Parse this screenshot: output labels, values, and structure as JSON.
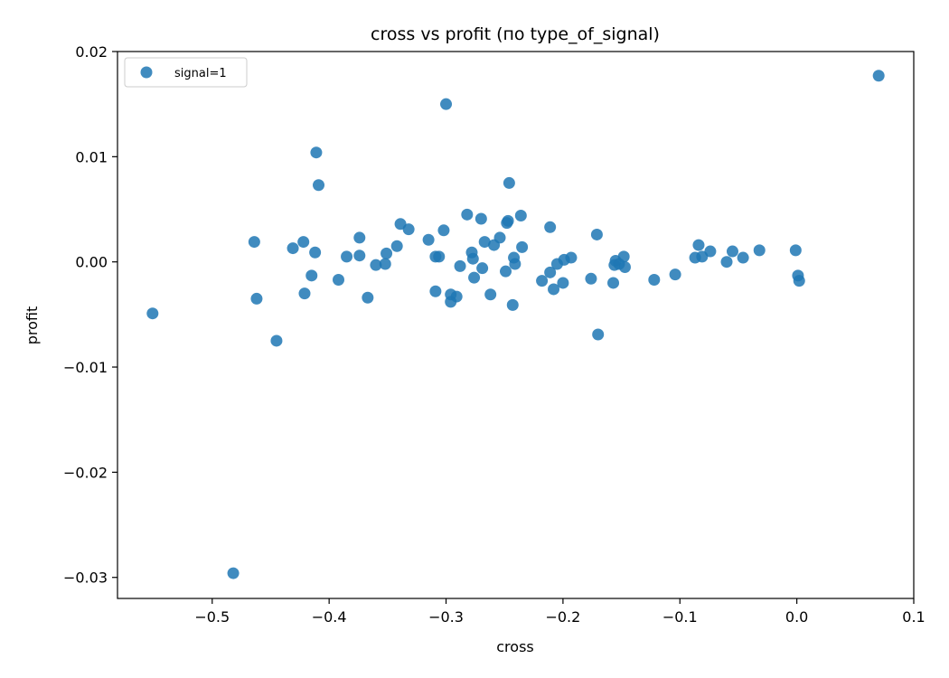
{
  "chart_data": {
    "type": "scatter",
    "title": "cross vs profit (по type_of_signal)",
    "xlabel": "cross",
    "ylabel": "profit",
    "xlim": [
      -0.581,
      0.1
    ],
    "ylim": [
      -0.032,
      0.02
    ],
    "x_ticks": [
      -0.5,
      -0.4,
      -0.3,
      -0.2,
      -0.1,
      0.0,
      0.1
    ],
    "x_tick_labels": [
      "−0.5",
      "−0.4",
      "−0.3",
      "−0.2",
      "−0.1",
      "0.0",
      "0.1"
    ],
    "y_ticks": [
      0.02,
      0.01,
      0.0,
      -0.01,
      -0.02,
      -0.03
    ],
    "y_tick_labels": [
      "0.02",
      "0.01",
      "0.00",
      "−0.01",
      "−0.02",
      "−0.03"
    ],
    "grid": false,
    "legend_position": "top-left",
    "colors": {
      "series": "#1f77b4"
    },
    "series": [
      {
        "name": "signal=1",
        "points": [
          [
            -0.551,
            -0.0049
          ],
          [
            -0.482,
            -0.0296
          ],
          [
            -0.464,
            0.0019
          ],
          [
            -0.462,
            -0.0035
          ],
          [
            -0.445,
            -0.0075
          ],
          [
            -0.431,
            0.0013
          ],
          [
            -0.422,
            0.0019
          ],
          [
            -0.421,
            -0.003
          ],
          [
            -0.415,
            -0.0013
          ],
          [
            -0.412,
            0.0009
          ],
          [
            -0.411,
            0.0104
          ],
          [
            -0.409,
            0.0073
          ],
          [
            -0.392,
            -0.0017
          ],
          [
            -0.385,
            0.0005
          ],
          [
            -0.374,
            0.0006
          ],
          [
            -0.374,
            0.0023
          ],
          [
            -0.367,
            -0.0034
          ],
          [
            -0.36,
            -0.0003
          ],
          [
            -0.352,
            -0.0002
          ],
          [
            -0.351,
            0.0008
          ],
          [
            -0.342,
            0.0015
          ],
          [
            -0.339,
            0.0036
          ],
          [
            -0.332,
            0.0031
          ],
          [
            -0.315,
            0.0021
          ],
          [
            -0.309,
            -0.0028
          ],
          [
            -0.309,
            0.0005
          ],
          [
            -0.306,
            0.0005
          ],
          [
            -0.302,
            0.003
          ],
          [
            -0.3,
            0.015
          ],
          [
            -0.296,
            -0.0031
          ],
          [
            -0.296,
            -0.0038
          ],
          [
            -0.291,
            -0.0033
          ],
          [
            -0.288,
            -0.0004
          ],
          [
            -0.282,
            0.0045
          ],
          [
            -0.278,
            0.0009
          ],
          [
            -0.277,
            0.0003
          ],
          [
            -0.276,
            -0.0015
          ],
          [
            -0.27,
            0.0041
          ],
          [
            -0.269,
            -0.0006
          ],
          [
            -0.267,
            0.0019
          ],
          [
            -0.262,
            -0.0031
          ],
          [
            -0.259,
            0.0016
          ],
          [
            -0.254,
            0.0023
          ],
          [
            -0.249,
            -0.0009
          ],
          [
            -0.248,
            0.0037
          ],
          [
            -0.247,
            0.0039
          ],
          [
            -0.246,
            0.0075
          ],
          [
            -0.243,
            -0.0041
          ],
          [
            -0.242,
            0.0004
          ],
          [
            -0.241,
            -0.0002
          ],
          [
            -0.236,
            0.0044
          ],
          [
            -0.235,
            0.0014
          ],
          [
            -0.218,
            -0.0018
          ],
          [
            -0.211,
            0.0033
          ],
          [
            -0.211,
            -0.001
          ],
          [
            -0.208,
            -0.0026
          ],
          [
            -0.205,
            -0.0002
          ],
          [
            -0.2,
            -0.002
          ],
          [
            -0.199,
            0.0002
          ],
          [
            -0.193,
            0.0004
          ],
          [
            -0.176,
            -0.0016
          ],
          [
            -0.171,
            0.0026
          ],
          [
            -0.17,
            -0.0069
          ],
          [
            -0.157,
            -0.002
          ],
          [
            -0.156,
            -0.0003
          ],
          [
            -0.155,
            0.0001
          ],
          [
            -0.152,
            -0.0002
          ],
          [
            -0.148,
            0.0005
          ],
          [
            -0.147,
            -0.0005
          ],
          [
            -0.122,
            -0.0017
          ],
          [
            -0.104,
            -0.0012
          ],
          [
            -0.087,
            0.0004
          ],
          [
            -0.084,
            0.0016
          ],
          [
            -0.081,
            0.0005
          ],
          [
            -0.074,
            0.001
          ],
          [
            -0.06,
            0.0
          ],
          [
            -0.055,
            0.001
          ],
          [
            -0.046,
            0.0004
          ],
          [
            -0.032,
            0.0011
          ],
          [
            -0.001,
            0.0011
          ],
          [
            0.001,
            -0.0013
          ],
          [
            0.002,
            -0.0018
          ],
          [
            0.07,
            0.0177
          ]
        ]
      }
    ]
  }
}
